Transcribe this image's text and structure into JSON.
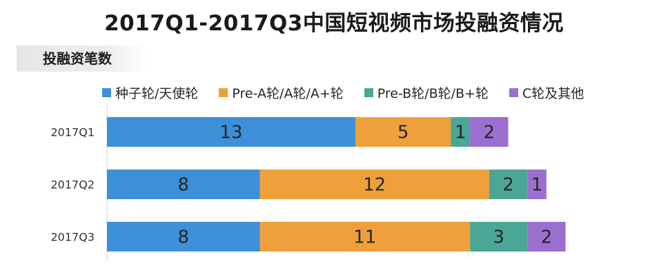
{
  "title": "2017Q1-2017Q3中国短视频市场投融资情况",
  "subtitle": "投融资笔数",
  "chart_data": {
    "type": "bar",
    "orientation": "horizontal",
    "stacked": true,
    "title": "2017Q1-2017Q3中国短视频市场投融资情况",
    "categories": [
      "2017Q1",
      "2017Q2",
      "2017Q3"
    ],
    "series": [
      {
        "name": "种子轮/天使轮",
        "color": "#3e8fd9",
        "values": [
          13,
          8,
          8
        ]
      },
      {
        "name": "Pre-A轮/A轮/A+轮",
        "color": "#f0a03a",
        "values": [
          5,
          12,
          11
        ]
      },
      {
        "name": "Pre-B轮/B轮/B+轮",
        "color": "#4ba695",
        "values": [
          1,
          2,
          3
        ]
      },
      {
        "name": "C轮及其他",
        "color": "#9b6fcf",
        "values": [
          2,
          1,
          2
        ]
      }
    ],
    "xlim": [
      0,
      29
    ],
    "legend": "top",
    "grid": false,
    "xlabel": "",
    "ylabel": ""
  }
}
